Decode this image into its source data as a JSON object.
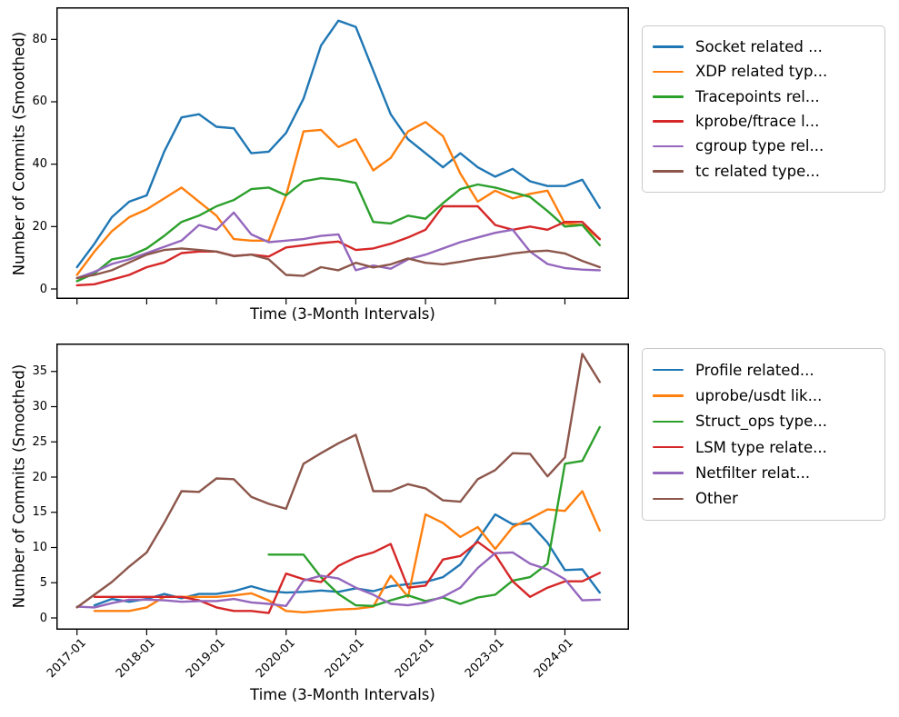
{
  "figure": {
    "background": "#ffffff"
  },
  "shared": {
    "ylabel": "Number of Commits (Smoothed)",
    "xlabel": "Time (3-Month Intervals)"
  },
  "chart_data": [
    {
      "type": "line",
      "id": "top",
      "title": "",
      "ylabel": "Number of Commits (Smoothed)",
      "xlabel": "Time (3-Month Intervals)",
      "ylim": [
        0,
        90.3
      ],
      "yticks": [
        0,
        20,
        40,
        60,
        80
      ],
      "xtick_labels": [
        "2017-01",
        "2018-01",
        "2019-01",
        "2020-01",
        "2021-01",
        "2022-01",
        "2023-01",
        "2024-01"
      ],
      "show_xtick_labels": false,
      "grid": false,
      "legend_position": "outside-right",
      "categories": [
        "2017-01",
        "2017-04",
        "2017-07",
        "2017-10",
        "2018-01",
        "2018-04",
        "2018-07",
        "2018-10",
        "2019-01",
        "2019-04",
        "2019-07",
        "2019-10",
        "2020-01",
        "2020-04",
        "2020-07",
        "2020-10",
        "2021-01",
        "2021-04",
        "2021-07",
        "2021-10",
        "2022-01",
        "2022-04",
        "2022-07",
        "2022-10",
        "2023-01",
        "2023-04",
        "2023-07",
        "2023-10",
        "2024-01",
        "2024-04",
        "2024-07"
      ],
      "series": [
        {
          "name": "Socket related ...",
          "color": "#1f77b4",
          "start": 0,
          "values": [
            7,
            14.5,
            23,
            28,
            30,
            44,
            55,
            56,
            52,
            51.5,
            43.5,
            44,
            50,
            61,
            78,
            86,
            84,
            70,
            56,
            48,
            43.5,
            39,
            43.5,
            39,
            36,
            38.5,
            34.5,
            33,
            33,
            35,
            26
          ]
        },
        {
          "name": "XDP related typ...",
          "color": "#ff7f0e",
          "start": 0,
          "values": [
            4.5,
            12,
            18.5,
            23,
            25.5,
            29,
            32.5,
            28,
            23.5,
            16,
            15.5,
            15.5,
            30,
            50.5,
            51,
            45.5,
            48,
            38,
            42,
            50.5,
            53.5,
            49,
            37,
            28,
            31.5,
            29,
            30.5,
            31.5,
            21,
            20.5,
            16
          ]
        },
        {
          "name": "Tracepoints rel...",
          "color": "#2ca02c",
          "start": 0,
          "values": [
            2.5,
            5,
            9.5,
            10.5,
            13,
            17,
            21.5,
            23.5,
            26.5,
            28.5,
            32,
            32.5,
            30,
            34.5,
            35.5,
            35,
            34,
            21.5,
            21,
            23.5,
            22.5,
            27.5,
            32,
            33.5,
            32.5,
            31,
            29.5,
            25,
            20,
            20.5,
            14
          ]
        },
        {
          "name": "kprobe/ftrace l...",
          "color": "#d62728",
          "start": 0,
          "values": [
            1.2,
            1.5,
            3,
            4.5,
            7,
            8.5,
            11.5,
            12,
            12,
            10.6,
            11,
            10.4,
            13.3,
            14,
            14.7,
            15.2,
            12.5,
            13,
            14.5,
            16.5,
            19,
            26.5,
            26.5,
            26.5,
            20.5,
            19,
            20,
            19,
            21.5,
            21.5,
            16
          ]
        },
        {
          "name": "cgroup type rel...",
          "color": "#9467bd",
          "start": 0,
          "values": [
            3.5,
            5.5,
            8,
            9.5,
            11.5,
            13.5,
            15.5,
            20.5,
            19,
            24.5,
            17.5,
            15,
            15.5,
            16,
            17,
            17.5,
            6,
            7.5,
            6.5,
            9.5,
            11,
            13,
            15,
            16.5,
            18,
            19,
            12,
            8,
            6.7,
            6.2,
            6
          ]
        },
        {
          "name": "tc related type...",
          "color": "#8c564b",
          "start": 0,
          "values": [
            3.5,
            4.5,
            6,
            8.5,
            11,
            12.5,
            13,
            12.5,
            12,
            10.5,
            11,
            9.5,
            4.5,
            4.2,
            7,
            6,
            8.4,
            6.9,
            7.9,
            9.8,
            8.4,
            7.9,
            8.7,
            9.7,
            10.4,
            11.4,
            12,
            12.3,
            11.4,
            9,
            7
          ]
        }
      ]
    },
    {
      "type": "line",
      "id": "bottom",
      "title": "",
      "ylabel": "Number of Commits (Smoothed)",
      "xlabel": "Time (3-Month Intervals)",
      "ylim": [
        0,
        39
      ],
      "yticks": [
        0,
        5,
        10,
        15,
        20,
        25,
        30,
        35
      ],
      "xtick_labels": [
        "2017-01",
        "2018-01",
        "2019-01",
        "2020-01",
        "2021-01",
        "2022-01",
        "2023-01",
        "2024-01"
      ],
      "show_xtick_labels": true,
      "grid": false,
      "legend_position": "outside-right",
      "categories": [
        "2017-01",
        "2017-04",
        "2017-07",
        "2017-10",
        "2018-01",
        "2018-04",
        "2018-07",
        "2018-10",
        "2019-01",
        "2019-04",
        "2019-07",
        "2019-10",
        "2020-01",
        "2020-04",
        "2020-07",
        "2020-10",
        "2021-01",
        "2021-04",
        "2021-07",
        "2021-10",
        "2022-01",
        "2022-04",
        "2022-07",
        "2022-10",
        "2023-01",
        "2023-04",
        "2023-07",
        "2023-10",
        "2024-01",
        "2024-04",
        "2024-07"
      ],
      "series": [
        {
          "name": "Profile related...",
          "color": "#1f77b4",
          "start": 1,
          "values": [
            1.8,
            2.7,
            2.3,
            2.7,
            3.4,
            2.8,
            3.4,
            3.4,
            3.8,
            4.5,
            3.8,
            3.6,
            3.7,
            3.9,
            3.7,
            4.2,
            3.8,
            4.5,
            4.8,
            5.1,
            5.8,
            7.6,
            11.1,
            14.7,
            13.3,
            13.4,
            10.7,
            6.8,
            6.9,
            3.6
          ]
        },
        {
          "name": "uprobe/usdt lik...",
          "color": "#ff7f0e",
          "start": 1,
          "values": [
            1,
            1,
            1,
            1.5,
            3,
            3,
            3,
            3,
            3.2,
            3.5,
            2.5,
            1,
            0.8,
            1,
            1.2,
            1.3,
            1.6,
            6,
            3,
            14.7,
            13.5,
            11.5,
            12.9,
            9.8,
            12.9,
            14.1,
            15.4,
            15.2,
            18,
            12.4
          ]
        },
        {
          "name": "Struct_ops type...",
          "color": "#2ca02c",
          "start": 11,
          "values": [
            9,
            9,
            9,
            5.8,
            3.4,
            1.8,
            1.7,
            2.5,
            3.2,
            2.4,
            2.9,
            2,
            2.9,
            3.3,
            5.3,
            5.8,
            7.7,
            21.9,
            22.3,
            27.1
          ]
        },
        {
          "name": "LSM type relate...",
          "color": "#d62728",
          "start": 1,
          "values": [
            3,
            3,
            3,
            3,
            3,
            3,
            2.5,
            1.5,
            1,
            1,
            0.7,
            6.3,
            5.5,
            5.1,
            7.4,
            8.6,
            9.3,
            10.5,
            4.3,
            4.6,
            8.3,
            8.8,
            10.8,
            9,
            5.2,
            3,
            4.3,
            5.2,
            5.2,
            6.4
          ]
        },
        {
          "name": "Netfilter relat...",
          "color": "#9467bd",
          "start": 0,
          "values": [
            1.6,
            1.5,
            2.1,
            2.6,
            2.6,
            2.5,
            2.3,
            2.4,
            2.4,
            2.7,
            2.2,
            2,
            1.7,
            5.3,
            6,
            5.6,
            4.3,
            3.3,
            2,
            1.8,
            2.2,
            3,
            4.3,
            7.1,
            9.2,
            9.3,
            7.7,
            6.9,
            5.5,
            2.5,
            2.6
          ]
        },
        {
          "name": "Other",
          "color": "#8c564b",
          "start": 0,
          "values": [
            1.5,
            3.3,
            5.1,
            7.3,
            9.3,
            13.5,
            18,
            17.9,
            19.8,
            19.7,
            17.2,
            16.2,
            15.5,
            21.9,
            23.4,
            24.8,
            26,
            18,
            18,
            19,
            18.4,
            16.7,
            16.5,
            19.7,
            21,
            23.4,
            23.3,
            20.1,
            22.8,
            37.5,
            33.5
          ]
        }
      ]
    }
  ]
}
